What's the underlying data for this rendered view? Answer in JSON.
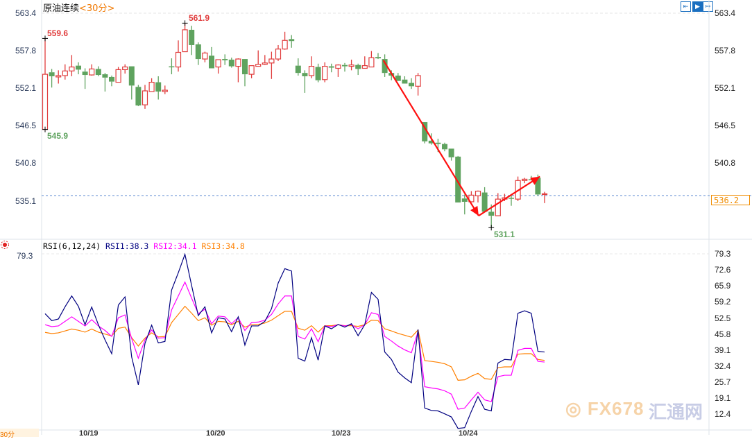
{
  "header": {
    "instrument": "原油连续",
    "period": "<30分>"
  },
  "toolbar": {
    "icons": [
      "fit-icon",
      "cursor-icon",
      "exit-icon"
    ]
  },
  "colors": {
    "up": "#e03c3c",
    "down": "#5fa35f",
    "rsi1": "#000080",
    "rsi2": "#ff00ff",
    "rsi3": "#ff8000",
    "current": "#f08c00",
    "arrow": "#ff1010"
  },
  "price_axis": {
    "labels": [
      "563.4",
      "557.8",
      "552.1",
      "546.5",
      "540.8",
      "535.1"
    ],
    "left_label": "563.4",
    "current_price": "536.2"
  },
  "rsi_axis": {
    "labels": [
      "79.3",
      "72.6",
      "65.9",
      "59.2",
      "52.5",
      "45.8",
      "39.1",
      "32.4",
      "25.7",
      "19.1",
      "12.4"
    ],
    "left_label": "79.3"
  },
  "annotations": {
    "high1": "559.6",
    "low1": "545.9",
    "high2": "561.9",
    "low2": "531.1"
  },
  "rsi_legend": {
    "params": "RSI(6,12,24)",
    "rsi1": "RSI1:38.3",
    "rsi2": "RSI2:34.1",
    "rsi3": "RSI3:34.8"
  },
  "dates": [
    "10/19",
    "10/20",
    "10/23",
    "10/24"
  ],
  "period_tag": "30分",
  "watermark": {
    "brand": "FX678",
    "cn": "汇通网"
  },
  "chart_data": {
    "type": "candlestick",
    "price_range": [
      535.1,
      563.4
    ],
    "current_price": 536.2,
    "ohlc": [
      [
        545.9,
        559.6,
        545.9,
        554.2
      ],
      [
        554.5,
        555.0,
        552.2,
        553.9
      ],
      [
        553.8,
        554.8,
        552.8,
        554.0
      ],
      [
        554.0,
        555.7,
        553.4,
        554.7
      ],
      [
        554.7,
        557.1,
        553.9,
        555.3
      ],
      [
        555.5,
        556.0,
        554.2,
        554.9
      ],
      [
        554.6,
        555.1,
        552.0,
        554.1
      ],
      [
        554.1,
        555.7,
        554.0,
        555.0
      ],
      [
        555.0,
        555.4,
        553.9,
        554.1
      ],
      [
        554.2,
        554.4,
        551.6,
        553.7
      ],
      [
        553.8,
        554.0,
        552.4,
        553.1
      ],
      [
        553.0,
        555.3,
        553.0,
        554.9
      ],
      [
        554.9,
        555.7,
        554.3,
        555.3
      ],
      [
        555.4,
        555.4,
        550.4,
        552.5
      ],
      [
        552.3,
        552.6,
        549.4,
        549.5
      ],
      [
        549.6,
        552.6,
        549.0,
        551.7
      ],
      [
        551.6,
        553.6,
        551.6,
        553.0
      ],
      [
        553.0,
        553.9,
        550.4,
        551.6
      ],
      [
        551.6,
        552.5,
        551.2,
        551.8
      ],
      [
        555.4,
        556.6,
        554.2,
        555.3
      ],
      [
        555.3,
        559.3,
        554.6,
        557.5
      ],
      [
        557.6,
        561.9,
        557.6,
        560.9
      ],
      [
        560.9,
        561.5,
        557.1,
        558.6
      ],
      [
        558.7,
        559.0,
        555.6,
        556.5
      ],
      [
        556.5,
        557.6,
        556.0,
        557.4
      ],
      [
        557.0,
        558.3,
        555.1,
        555.1
      ],
      [
        555.3,
        556.4,
        554.3,
        556.4
      ],
      [
        556.5,
        557.2,
        555.6,
        556.3
      ],
      [
        556.4,
        556.7,
        555.2,
        555.4
      ],
      [
        555.4,
        556.6,
        553.0,
        556.5
      ],
      [
        556.5,
        556.5,
        552.4,
        554.2
      ],
      [
        554.2,
        555.5,
        553.6,
        555.5
      ],
      [
        555.4,
        557.8,
        555.4,
        555.7
      ],
      [
        555.7,
        557.1,
        555.6,
        555.9
      ],
      [
        555.9,
        557.6,
        553.5,
        556.5
      ],
      [
        556.5,
        558.6,
        556.2,
        558.0
      ],
      [
        558.0,
        560.6,
        557.9,
        559.3
      ],
      [
        559.5,
        560.1,
        558.2,
        559.2
      ],
      [
        555.5,
        556.6,
        554.0,
        554.4
      ],
      [
        554.4,
        554.8,
        551.4,
        553.9
      ],
      [
        554.0,
        556.9,
        553.6,
        555.4
      ],
      [
        555.3,
        555.8,
        553.0,
        553.3
      ],
      [
        553.4,
        556.0,
        553.0,
        555.4
      ],
      [
        555.4,
        555.8,
        554.5,
        555.2
      ],
      [
        555.1,
        555.7,
        553.8,
        555.6
      ],
      [
        555.6,
        555.9,
        554.6,
        555.4
      ],
      [
        555.4,
        556.4,
        554.8,
        555.6
      ],
      [
        555.6,
        555.8,
        554.1,
        555.0
      ],
      [
        555.1,
        556.9,
        555.1,
        555.5
      ],
      [
        555.3,
        557.7,
        555.3,
        556.7
      ],
      [
        556.8,
        557.4,
        556.5,
        556.6
      ],
      [
        556.5,
        557.2,
        553.8,
        554.4
      ],
      [
        554.4,
        554.8,
        553.3,
        554.0
      ],
      [
        554.0,
        554.4,
        553.2,
        553.2
      ],
      [
        553.4,
        553.9,
        552.8,
        552.8
      ],
      [
        552.9,
        553.6,
        552.0,
        552.4
      ],
      [
        552.4,
        554.4,
        551.0,
        554.0
      ],
      [
        547.0,
        547.0,
        543.8,
        544.1
      ],
      [
        544.2,
        545.3,
        543.6,
        543.8
      ],
      [
        543.9,
        544.5,
        542.5,
        543.7
      ],
      [
        543.7,
        543.9,
        542.6,
        542.9
      ],
      [
        543.0,
        543.0,
        541.2,
        541.7
      ],
      [
        541.8,
        541.9,
        534.9,
        534.9
      ],
      [
        535.5,
        536.1,
        533.1,
        535.0
      ],
      [
        535.0,
        536.6,
        535.0,
        536.0
      ],
      [
        535.9,
        536.7,
        534.9,
        536.6
      ],
      [
        536.4,
        537.2,
        533.5,
        533.5
      ],
      [
        533.5,
        534.6,
        531.1,
        532.9
      ],
      [
        532.9,
        536.3,
        532.9,
        535.4
      ],
      [
        535.4,
        536.2,
        535.1,
        535.6
      ],
      [
        535.6,
        536.1,
        534.4,
        535.5
      ],
      [
        535.4,
        538.8,
        535.1,
        538.2
      ],
      [
        538.2,
        538.6,
        537.8,
        538.4
      ],
      [
        538.4,
        538.9,
        538.3,
        538.3
      ],
      [
        538.6,
        539.1,
        535.9,
        536.1
      ],
      [
        536.1,
        536.5,
        534.8,
        536.2
      ]
    ],
    "arrows": [
      {
        "from": [
          50.8,
          556.3
        ],
        "to": [
          65.1,
          532.9
        ]
      },
      {
        "from": [
          65.1,
          532.9
        ],
        "to": [
          74.3,
          538.8
        ]
      }
    ],
    "rsi": {
      "range": [
        12.4,
        79.3
      ],
      "series": [
        {
          "name": "RSI1",
          "values": [
            54.3,
            51.4,
            52.1,
            57.2,
            61.7,
            57.4,
            49.7,
            57.1,
            49.7,
            43.4,
            37.6,
            57.9,
            61.3,
            36.2,
            24.6,
            41.9,
            49.5,
            42.1,
            42.7,
            64.2,
            71.4,
            79.1,
            66.1,
            53.5,
            57.2,
            46.3,
            52.6,
            52.1,
            46.8,
            53.0,
            41.2,
            49.2,
            49.2,
            51.1,
            56.4,
            67.1,
            73.1,
            72.1,
            35.7,
            34.5,
            44.3,
            34.9,
            49.2,
            48.0,
            49.8,
            48.7,
            50.1,
            45.1,
            49.7,
            63.2,
            60.3,
            38.3,
            35.2,
            29.9,
            27.5,
            25.5,
            47.7,
            14.9,
            13.9,
            13.7,
            12.5,
            11.2,
            6.4,
            6.7,
            13.5,
            19.7,
            14.4,
            13.7,
            33.7,
            35.2,
            35.0,
            54.5,
            55.5,
            54.5,
            38.6,
            38.3
          ]
        },
        {
          "name": "RSI2",
          "values": [
            49.7,
            48.9,
            49.2,
            51.1,
            53.0,
            51.1,
            49.2,
            51.8,
            49.2,
            47.3,
            44.8,
            52.6,
            53.8,
            43.9,
            35.7,
            43.4,
            47.5,
            44.1,
            44.3,
            55.9,
            61.7,
            67.5,
            60.8,
            54.3,
            56.2,
            50.1,
            53.3,
            53.0,
            50.1,
            52.7,
            47.3,
            50.6,
            50.8,
            51.6,
            54.0,
            58.4,
            61.7,
            61.7,
            44.8,
            43.7,
            48.0,
            42.6,
            49.2,
            48.9,
            49.7,
            49.2,
            49.7,
            48.0,
            49.7,
            54.7,
            54.0,
            44.8,
            42.9,
            40.8,
            39.2,
            38.0,
            46.8,
            23.8,
            23.3,
            22.9,
            22.1,
            20.7,
            14.4,
            14.9,
            18.3,
            21.5,
            18.3,
            17.6,
            28.0,
            28.6,
            28.6,
            39.0,
            39.8,
            39.8,
            34.4,
            34.1
          ]
        },
        {
          "name": "RSI3",
          "values": [
            46.5,
            46.0,
            46.3,
            47.1,
            47.9,
            47.4,
            46.6,
            47.9,
            46.6,
            45.8,
            45.0,
            48.2,
            48.7,
            44.3,
            40.8,
            44.1,
            46.3,
            44.6,
            44.8,
            50.6,
            54.0,
            57.4,
            54.5,
            51.4,
            52.6,
            49.5,
            51.1,
            50.9,
            49.7,
            51.1,
            48.7,
            49.7,
            49.8,
            50.4,
            51.6,
            53.5,
            55.3,
            55.3,
            48.2,
            47.4,
            49.3,
            46.6,
            49.3,
            49.3,
            49.7,
            49.3,
            49.3,
            49.0,
            49.7,
            51.6,
            51.4,
            48.0,
            47.1,
            46.1,
            45.3,
            44.5,
            47.5,
            34.7,
            34.4,
            34.0,
            33.4,
            32.1,
            26.5,
            26.7,
            28.2,
            29.4,
            27.2,
            26.9,
            31.8,
            32.1,
            32.1,
            37.4,
            37.6,
            37.6,
            35.2,
            34.8
          ]
        }
      ]
    }
  }
}
